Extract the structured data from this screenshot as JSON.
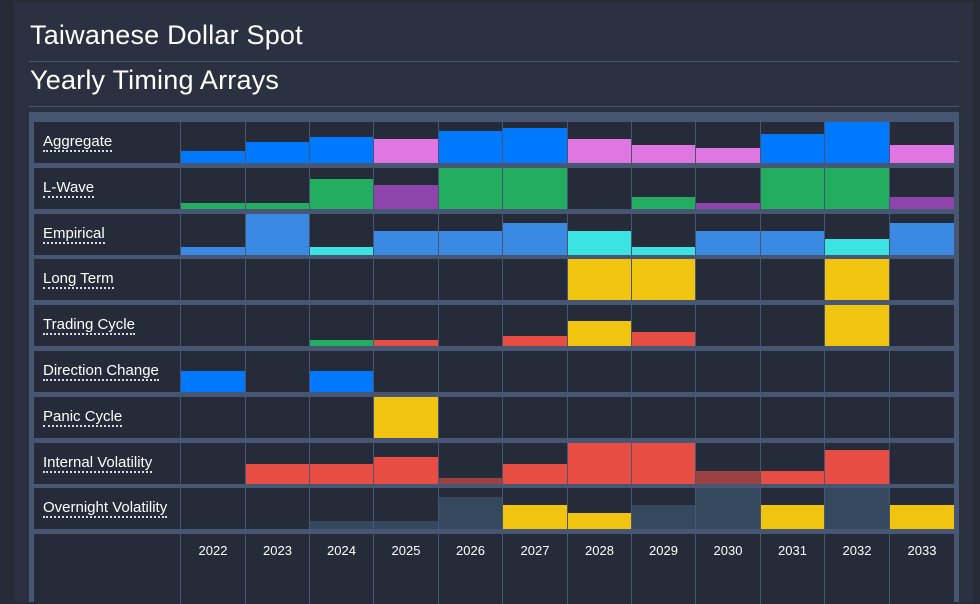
{
  "header": {
    "title": "Taiwanese Dollar Spot",
    "subtitle": "Yearly Timing Arrays"
  },
  "colors": {
    "blue": "#0079fe",
    "pink": "#df76e2",
    "green": "#23ad60",
    "purple": "#8e45ab",
    "lightblue": "#3a89e3",
    "cyan": "#3ce3e3",
    "yellow": "#f0c40f",
    "red": "#e84d43",
    "darkred": "#9b4141",
    "slate": "#34495e",
    "cell_bg": "#252b38",
    "grid": "#475672"
  },
  "chart_data": {
    "type": "heatmap",
    "title": "Yearly Timing Arrays",
    "subtitle": "Taiwanese Dollar Spot",
    "xlabel": "",
    "ylabel": "",
    "categories": [
      "2022",
      "2023",
      "2024",
      "2025",
      "2026",
      "2027",
      "2028",
      "2029",
      "2030",
      "2031",
      "2032",
      "2033"
    ],
    "value_range": [
      0,
      1
    ],
    "series": [
      {
        "name": "Aggregate",
        "values": [
          0.29,
          0.51,
          0.63,
          0.59,
          0.78,
          0.85,
          0.59,
          0.44,
          0.37,
          0.71,
          1.0,
          0.44
        ],
        "colors": [
          "blue",
          "blue",
          "blue",
          "pink",
          "blue",
          "blue",
          "pink",
          "pink",
          "pink",
          "blue",
          "blue",
          "pink"
        ]
      },
      {
        "name": "L-Wave",
        "values": [
          0.15,
          0.15,
          0.73,
          0.59,
          1.0,
          1.0,
          0,
          0.29,
          0.15,
          1.0,
          1.0,
          0.29
        ],
        "colors": [
          "green",
          "green",
          "green",
          "purple",
          "green",
          "green",
          "green",
          "green",
          "purple",
          "green",
          "green",
          "purple"
        ]
      },
      {
        "name": "Empirical",
        "values": [
          0.2,
          1.0,
          0.2,
          0.59,
          0.59,
          0.78,
          0.59,
          0.2,
          0.59,
          0.59,
          0.39,
          0.78
        ],
        "colors": [
          "lightblue",
          "lightblue",
          "cyan",
          "lightblue",
          "lightblue",
          "lightblue",
          "cyan",
          "cyan",
          "lightblue",
          "lightblue",
          "cyan",
          "lightblue"
        ]
      },
      {
        "name": "Long Term",
        "values": [
          0,
          0,
          0,
          0,
          0,
          0,
          1.0,
          1.0,
          0,
          0,
          1.0,
          0
        ],
        "colors": [
          "yellow",
          "yellow",
          "yellow",
          "yellow",
          "yellow",
          "yellow",
          "yellow",
          "yellow",
          "yellow",
          "yellow",
          "yellow",
          "yellow"
        ]
      },
      {
        "name": "Trading Cycle",
        "values": [
          0,
          0,
          0.15,
          0.15,
          0,
          0.24,
          0.61,
          0.34,
          0,
          0,
          1.0,
          0
        ],
        "colors": [
          "red",
          "red",
          "green",
          "red",
          "red",
          "red",
          "yellow",
          "red",
          "red",
          "red",
          "yellow",
          "red"
        ]
      },
      {
        "name": "Direction Change",
        "values": [
          0.51,
          0,
          0.51,
          0,
          0,
          0,
          0,
          0,
          0,
          0,
          0,
          0
        ],
        "colors": [
          "blue",
          "blue",
          "blue",
          "blue",
          "blue",
          "blue",
          "blue",
          "blue",
          "blue",
          "blue",
          "blue",
          "blue"
        ]
      },
      {
        "name": "Panic Cycle",
        "values": [
          0,
          0,
          0,
          1.0,
          0,
          0,
          0,
          0,
          0,
          0,
          0,
          0
        ],
        "colors": [
          "yellow",
          "yellow",
          "yellow",
          "yellow",
          "yellow",
          "yellow",
          "yellow",
          "yellow",
          "yellow",
          "yellow",
          "yellow",
          "yellow"
        ]
      },
      {
        "name": "Internal Volatility",
        "values": [
          0,
          0.49,
          0.49,
          0.66,
          0.15,
          0.49,
          1.0,
          1.0,
          0.32,
          0.32,
          0.83,
          0
        ],
        "colors": [
          "red",
          "red",
          "red",
          "red",
          "darkred",
          "red",
          "red",
          "red",
          "darkred",
          "red",
          "red",
          "red"
        ]
      },
      {
        "name": "Overnight Volatility",
        "values": [
          0,
          0,
          0.2,
          0.2,
          0.78,
          0.59,
          0.39,
          0.59,
          1.0,
          0.59,
          1.0,
          0.59
        ],
        "colors": [
          "slate",
          "slate",
          "slate",
          "slate",
          "slate",
          "yellow",
          "yellow",
          "slate",
          "slate",
          "yellow",
          "slate",
          "yellow"
        ]
      }
    ],
    "legend": "none",
    "grid": true
  }
}
